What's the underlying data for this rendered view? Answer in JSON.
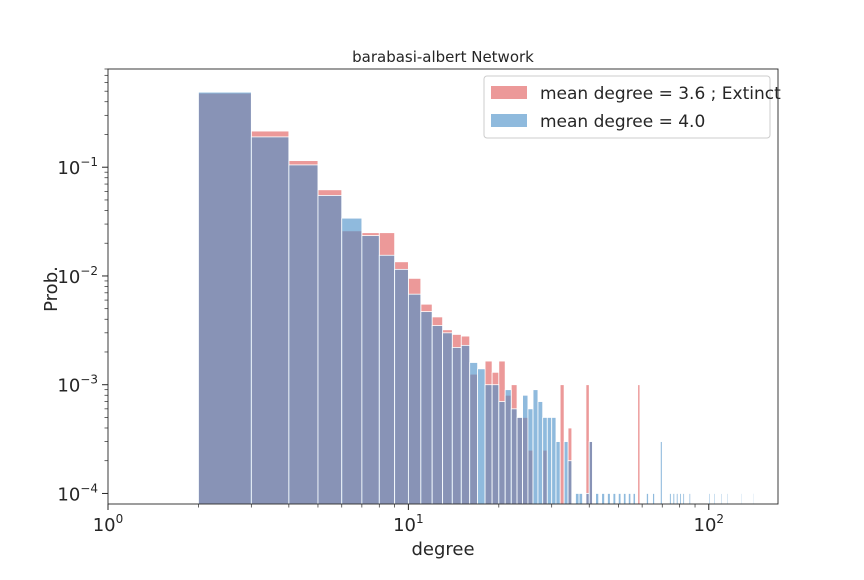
{
  "chart_data": {
    "type": "bar",
    "title": "barabasi-albert Network",
    "xlabel": "degree",
    "ylabel": "Prob.",
    "x_scale": "log",
    "y_scale": "log",
    "xlim": [
      1,
      170
    ],
    "ylim": [
      8e-05,
      0.8
    ],
    "grid": false,
    "legend_position": "top-right",
    "x_tick_labels": [
      {
        "value": 1,
        "base": "10",
        "exp": "0"
      },
      {
        "value": 10,
        "base": "10",
        "exp": "1"
      },
      {
        "value": 100,
        "base": "10",
        "exp": "2"
      }
    ],
    "y_tick_labels": [
      {
        "value": 0.1,
        "base": "10",
        "exp": "−1"
      },
      {
        "value": 0.01,
        "base": "10",
        "exp": "−2"
      },
      {
        "value": 0.001,
        "base": "10",
        "exp": "−3"
      },
      {
        "value": 0.0001,
        "base": "10",
        "exp": "−4"
      }
    ],
    "series": [
      {
        "name": "mean degree = 3.6 ; Extinct",
        "color": "#e05a5a",
        "bars": [
          [
            2,
            3,
            0.48
          ],
          [
            3,
            4,
            0.215
          ],
          [
            4,
            5,
            0.115
          ],
          [
            5,
            6,
            0.062
          ],
          [
            6,
            7,
            0.026
          ],
          [
            7,
            8,
            0.025
          ],
          [
            8,
            9,
            0.025
          ],
          [
            9,
            10,
            0.0135
          ],
          [
            10,
            11,
            0.0095
          ],
          [
            11,
            12,
            0.0055
          ],
          [
            12,
            13,
            0.0042
          ],
          [
            13,
            14,
            0.0032
          ],
          [
            14,
            15,
            0.0029
          ],
          [
            15,
            16,
            0.0028
          ],
          [
            16,
            17,
            0.00125
          ],
          [
            18,
            19,
            0.00165
          ],
          [
            19,
            20,
            0.0013
          ],
          [
            20,
            21,
            0.00165
          ],
          [
            21,
            22,
            0.0008
          ],
          [
            22,
            23,
            0.001
          ],
          [
            23,
            24,
            0.0005
          ],
          [
            24,
            25,
            0.0005
          ],
          [
            25,
            26,
            0.00025
          ],
          [
            28,
            29,
            0.00025
          ],
          [
            32,
            33,
            0.001
          ],
          [
            34,
            35,
            0.0004
          ],
          [
            39,
            40,
            0.001
          ],
          [
            40,
            41,
            0.0003
          ],
          [
            58,
            59,
            0.001
          ]
        ]
      },
      {
        "name": "mean degree = 4.0",
        "color": "#4a90c8",
        "bars": [
          [
            2,
            3,
            0.49
          ],
          [
            3,
            4,
            0.19
          ],
          [
            4,
            5,
            0.105
          ],
          [
            5,
            6,
            0.055
          ],
          [
            6,
            7,
            0.034
          ],
          [
            7,
            8,
            0.0235
          ],
          [
            8,
            9,
            0.0155
          ],
          [
            9,
            10,
            0.0115
          ],
          [
            10,
            11,
            0.0068
          ],
          [
            11,
            12,
            0.0047
          ],
          [
            12,
            13,
            0.0035
          ],
          [
            13,
            14,
            0.003
          ],
          [
            14,
            15,
            0.0022
          ],
          [
            15,
            16,
            0.0023
          ],
          [
            16,
            17,
            0.0016
          ],
          [
            17,
            18,
            0.0014
          ],
          [
            18,
            19,
            0.001
          ],
          [
            19,
            20,
            0.001
          ],
          [
            20,
            21,
            0.0007
          ],
          [
            21,
            22,
            0.0009
          ],
          [
            22,
            23,
            0.0006
          ],
          [
            23,
            24,
            0.0005
          ],
          [
            24,
            25,
            0.0008
          ],
          [
            25,
            26,
            0.0006
          ],
          [
            26,
            27,
            0.0009
          ],
          [
            27,
            28,
            0.0007
          ],
          [
            28,
            29,
            0.0005
          ],
          [
            29,
            30,
            0.0005
          ],
          [
            30,
            31,
            0.0005
          ],
          [
            31,
            32,
            0.0003
          ],
          [
            33,
            34,
            0.0003
          ],
          [
            34,
            35,
            0.0002
          ],
          [
            36,
            37,
            0.0001
          ],
          [
            37,
            38,
            0.0001
          ],
          [
            39,
            40,
            0.0001
          ],
          [
            40,
            41,
            0.0003
          ],
          [
            42,
            43,
            0.0001
          ],
          [
            44,
            45,
            0.0001
          ],
          [
            46,
            47,
            0.0001
          ],
          [
            48,
            49,
            0.0001
          ],
          [
            50,
            51,
            0.0001
          ],
          [
            52,
            53,
            0.0001
          ],
          [
            54,
            55,
            0.0001
          ],
          [
            56,
            57,
            0.0001
          ],
          [
            62,
            63,
            0.0001
          ],
          [
            65,
            66,
            0.0001
          ],
          [
            69,
            70,
            0.0003
          ],
          [
            74,
            75,
            0.0001
          ],
          [
            76,
            77,
            0.0001
          ],
          [
            78,
            79,
            0.0001
          ],
          [
            80,
            81,
            0.0001
          ],
          [
            82,
            83,
            0.0001
          ],
          [
            86,
            87,
            0.0001
          ],
          [
            100,
            101,
            0.0001
          ],
          [
            104,
            105,
            0.0001
          ],
          [
            110,
            111,
            0.0001
          ],
          [
            115,
            116,
            0.0001
          ],
          [
            128,
            129,
            0.0001
          ],
          [
            140,
            141,
            0.0001
          ]
        ]
      }
    ]
  }
}
